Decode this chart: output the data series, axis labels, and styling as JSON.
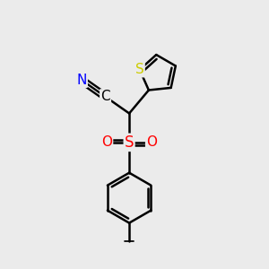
{
  "background_color": "#ebebeb",
  "atom_colors": {
    "N": "#0000ff",
    "S_thiophene": "#cccc00",
    "S_sulfonyl": "#ff0000",
    "O": "#ff0000",
    "C": "#000000"
  },
  "bond_color": "#000000",
  "bond_width": 1.8,
  "figsize": [
    3.0,
    3.0
  ],
  "dpi": 100
}
